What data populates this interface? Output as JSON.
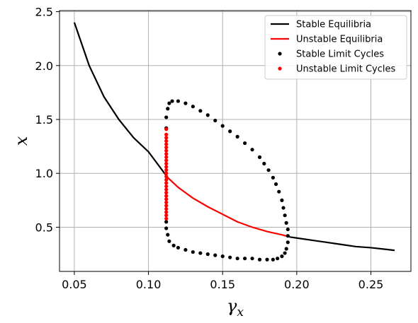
{
  "chart_data": {
    "type": "line",
    "title": "",
    "xlabel": "γ",
    "xlabel_sub": "x",
    "ylabel": "x",
    "xlim": [
      0.04,
      0.277
    ],
    "ylim": [
      0.09,
      2.51
    ],
    "xticks": [
      0.05,
      0.1,
      0.15,
      0.2,
      0.25
    ],
    "xtick_labels": [
      "0.05",
      "0.10",
      "0.15",
      "0.20",
      "0.25"
    ],
    "yticks": [
      0.5,
      1.0,
      1.5,
      2.0,
      2.5
    ],
    "ytick_labels": [
      "0.5",
      "1.0",
      "1.5",
      "2.0",
      "2.5"
    ],
    "grid": true,
    "legend_position": "top-right",
    "legend": [
      "Stable Equilibria",
      "Unstable Equilibria",
      "Stable Limit Cycles",
      "Unstable Limit Cycles"
    ],
    "colors": {
      "stable": "#000000",
      "unstable": "#ff0000",
      "grid": "#b0b0b0"
    },
    "series": [
      {
        "name": "Stable Equilibria",
        "kind": "line",
        "color": "#000000",
        "x": [
          0.05,
          0.06,
          0.07,
          0.08,
          0.09,
          0.1,
          0.113
        ],
        "y": [
          2.4,
          2.0,
          1.71,
          1.5,
          1.33,
          1.2,
          0.96
        ]
      },
      {
        "name": "Unstable Equilibria",
        "kind": "line",
        "color": "#ff0000",
        "x": [
          0.113,
          0.12,
          0.13,
          0.14,
          0.15,
          0.16,
          0.17,
          0.18,
          0.19,
          0.195
        ],
        "y": [
          0.96,
          0.87,
          0.77,
          0.69,
          0.62,
          0.55,
          0.5,
          0.46,
          0.43,
          0.41
        ]
      },
      {
        "name": "Stable Equilibria",
        "kind": "line",
        "color": "#000000",
        "x": [
          0.195,
          0.2,
          0.21,
          0.22,
          0.23,
          0.24,
          0.25,
          0.26,
          0.266
        ],
        "y": [
          0.41,
          0.4,
          0.38,
          0.36,
          0.34,
          0.32,
          0.31,
          0.295,
          0.285
        ]
      },
      {
        "name": "Stable Limit Cycles",
        "kind": "dots",
        "color": "#000000",
        "x": [
          0.112,
          0.112,
          0.113,
          0.114,
          0.116,
          0.12,
          0.125,
          0.13,
          0.135,
          0.14,
          0.145,
          0.15,
          0.155,
          0.16,
          0.165,
          0.17,
          0.175,
          0.178,
          0.181,
          0.184,
          0.186,
          0.188,
          0.19,
          0.191,
          0.192,
          0.193,
          0.194,
          0.194,
          0.194,
          0.193,
          0.192,
          0.19,
          0.187,
          0.184,
          0.18,
          0.175,
          0.17,
          0.165,
          0.16,
          0.155,
          0.15,
          0.145,
          0.14,
          0.135,
          0.13,
          0.125,
          0.12,
          0.117,
          0.114,
          0.113,
          0.112,
          0.112
        ],
        "y": [
          1.42,
          1.52,
          1.6,
          1.65,
          1.67,
          1.67,
          1.65,
          1.62,
          1.58,
          1.54,
          1.49,
          1.44,
          1.39,
          1.34,
          1.28,
          1.22,
          1.15,
          1.09,
          1.03,
          0.96,
          0.9,
          0.83,
          0.75,
          0.68,
          0.61,
          0.54,
          0.48,
          0.42,
          0.36,
          0.3,
          0.26,
          0.23,
          0.21,
          0.2,
          0.2,
          0.2,
          0.21,
          0.21,
          0.21,
          0.22,
          0.23,
          0.24,
          0.25,
          0.26,
          0.27,
          0.29,
          0.31,
          0.33,
          0.37,
          0.43,
          0.49,
          0.55
        ]
      },
      {
        "name": "Unstable Limit Cycles",
        "kind": "dots",
        "color": "#ff0000",
        "x": [
          0.112,
          0.112,
          0.112,
          0.112,
          0.112,
          0.112,
          0.112,
          0.112,
          0.112,
          0.112,
          0.112,
          0.112,
          0.112,
          0.112,
          0.112,
          0.112,
          0.112,
          0.112,
          0.112,
          0.112,
          0.112,
          0.112,
          0.112,
          0.112,
          0.112,
          0.112,
          0.112,
          0.112
        ],
        "y": [
          0.58,
          0.61,
          0.64,
          0.67,
          0.7,
          0.73,
          0.76,
          0.79,
          0.82,
          0.85,
          0.88,
          0.91,
          0.94,
          0.97,
          1.0,
          1.03,
          1.06,
          1.09,
          1.12,
          1.15,
          1.18,
          1.21,
          1.24,
          1.27,
          1.3,
          1.33,
          1.36,
          1.41
        ]
      }
    ]
  }
}
